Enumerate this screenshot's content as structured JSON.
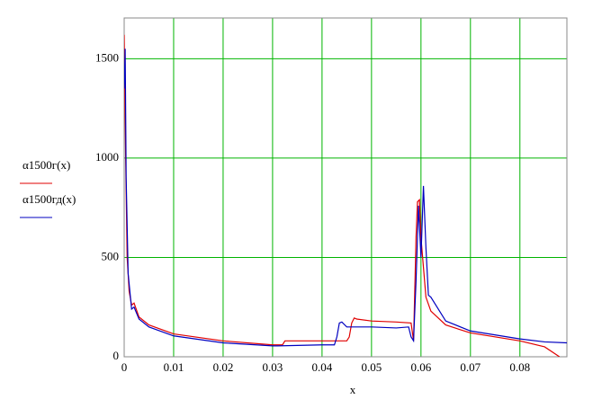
{
  "chart_data": {
    "type": "line",
    "x_label": "x",
    "xlim": [
      0,
      0.0895
    ],
    "ylim": [
      0,
      1705
    ],
    "xticks": [
      0,
      0.01,
      0.02,
      0.03,
      0.04,
      0.05,
      0.06,
      0.07,
      0.08
    ],
    "yticks": [
      0,
      500,
      1000,
      1500
    ],
    "grid": true,
    "grid_color": "#00b400",
    "series": [
      {
        "name": "α1500г(x)",
        "color": "#e00000",
        "x": [
          0,
          0.0003,
          0.0006,
          0.001,
          0.0015,
          0.002,
          0.003,
          0.005,
          0.01,
          0.02,
          0.03,
          0.032,
          0.0325,
          0.04,
          0.045,
          0.0455,
          0.046,
          0.0465,
          0.047,
          0.05,
          0.055,
          0.058,
          0.0585,
          0.059,
          0.0593,
          0.0597,
          0.06,
          0.061,
          0.062,
          0.065,
          0.07,
          0.08,
          0.085,
          0.088
        ],
        "values": [
          1620,
          1000,
          500,
          330,
          260,
          270,
          200,
          160,
          115,
          80,
          60,
          60,
          80,
          80,
          80,
          100,
          170,
          195,
          190,
          180,
          175,
          170,
          80,
          600,
          780,
          790,
          600,
          300,
          230,
          160,
          120,
          80,
          50,
          0
        ]
      },
      {
        "name": "α1500гд(x)",
        "color": "#0000c0",
        "x": [
          0,
          0.0002,
          0.0004,
          0.0008,
          0.0015,
          0.002,
          0.003,
          0.005,
          0.01,
          0.02,
          0.03,
          0.031,
          0.04,
          0.0425,
          0.043,
          0.0435,
          0.044,
          0.045,
          0.05,
          0.055,
          0.0575,
          0.058,
          0.0585,
          0.059,
          0.0595,
          0.06,
          0.0605,
          0.061,
          0.0615,
          0.062,
          0.065,
          0.07,
          0.08,
          0.085,
          0.0895
        ],
        "values": [
          1350,
          1550,
          900,
          420,
          240,
          250,
          190,
          150,
          105,
          70,
          55,
          55,
          60,
          60,
          100,
          170,
          175,
          150,
          150,
          145,
          150,
          100,
          80,
          380,
          760,
          500,
          860,
          550,
          310,
          300,
          180,
          130,
          90,
          75,
          70
        ]
      }
    ]
  }
}
